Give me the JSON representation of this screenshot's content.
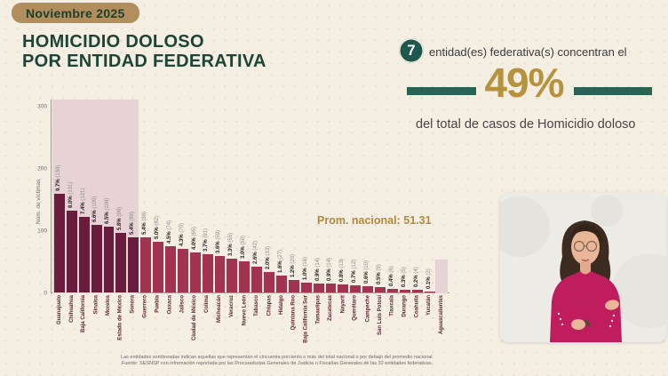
{
  "badge": {
    "label": "Noviembre 2025"
  },
  "title": {
    "line1": "HOMICIDIO DOLOSO",
    "line2": "POR ENTIDAD FEDERATIVA"
  },
  "highlight": {
    "count": "7",
    "text": "entidad(es) federativa(s) concentran el",
    "percent": "49%",
    "subtext": "del total de casos de Homicidio doloso"
  },
  "chart_data": {
    "type": "bar",
    "ylabel": "Núm. de víctimas",
    "ylim": [
      0,
      300
    ],
    "yticks": [
      0,
      100,
      200,
      300
    ],
    "annotation": "Prom. nacional: 51.31",
    "legend": "none",
    "grid": "off",
    "bars": [
      {
        "state": "Guanajuato",
        "pct": "9.7%",
        "victims": 159,
        "shaded": true
      },
      {
        "state": "Chihuahua",
        "pct": "8.0%",
        "victims": 131,
        "shaded": true
      },
      {
        "state": "Baja California",
        "pct": "7.4%",
        "victims": 121,
        "shaded": true
      },
      {
        "state": "Sinaloa",
        "pct": "6.6%",
        "victims": 109,
        "shaded": true
      },
      {
        "state": "Morelos",
        "pct": "6.5%",
        "victims": 106,
        "shaded": true
      },
      {
        "state": "Estado de México",
        "pct": "5.8%",
        "victims": 96,
        "shaded": true
      },
      {
        "state": "Sonora",
        "pct": "5.4%",
        "victims": 89,
        "shaded": true
      },
      {
        "state": "Guerrero",
        "pct": "5.4%",
        "victims": 88,
        "shaded": false
      },
      {
        "state": "Puebla",
        "pct": "5.0%",
        "victims": 82,
        "shaded": false
      },
      {
        "state": "Oaxaca",
        "pct": "4.5%",
        "victims": 74,
        "shaded": false
      },
      {
        "state": "Jalisco",
        "pct": "4.3%",
        "victims": 70,
        "shaded": false
      },
      {
        "state": "Ciudad de México",
        "pct": "4.0%",
        "victims": 65,
        "shaded": false
      },
      {
        "state": "Colima",
        "pct": "3.7%",
        "victims": 61,
        "shaded": false
      },
      {
        "state": "Michoacán",
        "pct": "3.6%",
        "victims": 59,
        "shaded": false
      },
      {
        "state": "Veracruz",
        "pct": "3.3%",
        "victims": 55,
        "shaded": false
      },
      {
        "state": "Nuevo León",
        "pct": "3.0%",
        "victims": 50,
        "shaded": false
      },
      {
        "state": "Tabasco",
        "pct": "2.6%",
        "victims": 42,
        "shaded": false
      },
      {
        "state": "Chiapas",
        "pct": "2.0%",
        "victims": 33,
        "shaded": false
      },
      {
        "state": "Hidalgo",
        "pct": "1.6%",
        "victims": 27,
        "shaded": false
      },
      {
        "state": "Quintana Roo",
        "pct": "1.2%",
        "victims": 20,
        "shaded": false
      },
      {
        "state": "Baja California Sur",
        "pct": "1.0%",
        "victims": 16,
        "shaded": false
      },
      {
        "state": "Tamaulipas",
        "pct": "0.9%",
        "victims": 14,
        "shaded": false
      },
      {
        "state": "Zacatecas",
        "pct": "0.9%",
        "victims": 14,
        "shaded": false
      },
      {
        "state": "Nayarit",
        "pct": "0.8%",
        "victims": 13,
        "shaded": false
      },
      {
        "state": "Querétaro",
        "pct": "0.7%",
        "victims": 12,
        "shaded": false
      },
      {
        "state": "Campeche",
        "pct": "0.6%",
        "victims": 10,
        "shaded": false
      },
      {
        "state": "San Luis Potosí",
        "pct": "0.5%",
        "victims": 9,
        "shaded": false
      },
      {
        "state": "Tlaxcala",
        "pct": "0.4%",
        "victims": 6,
        "shaded": false
      },
      {
        "state": "Durango",
        "pct": "0.3%",
        "victims": 5,
        "shaded": false
      },
      {
        "state": "Coahuila",
        "pct": "0.2%",
        "victims": 4,
        "shaded": false
      },
      {
        "state": "Yucatán",
        "pct": "0.1%",
        "victims": 2,
        "shaded": false
      },
      {
        "state": "Aguascalientes",
        "pct": "0.0%",
        "victims": 0,
        "shaded": false,
        "label_shaded": true
      }
    ]
  },
  "footnote": {
    "line1": "Las entidades sombreadas indican aquellas que representan el cincuenta porciento o más del total nacional o por debajo del promedio nacional.",
    "line2": "Fuente: SESNSP con información reportada por las Procuradurías Generales de Justicia o Fiscalías Generales de las 32 entidades federativas."
  },
  "colors": {
    "accent_green": "#1e584a",
    "gold": "#b6923d",
    "bar_dark": "#691c3c",
    "bar_light": "#a23351",
    "shade_pink": "#e7d2d6",
    "badge_tan": "#b18e5c",
    "interpreter_magenta": "#c01d5e"
  }
}
